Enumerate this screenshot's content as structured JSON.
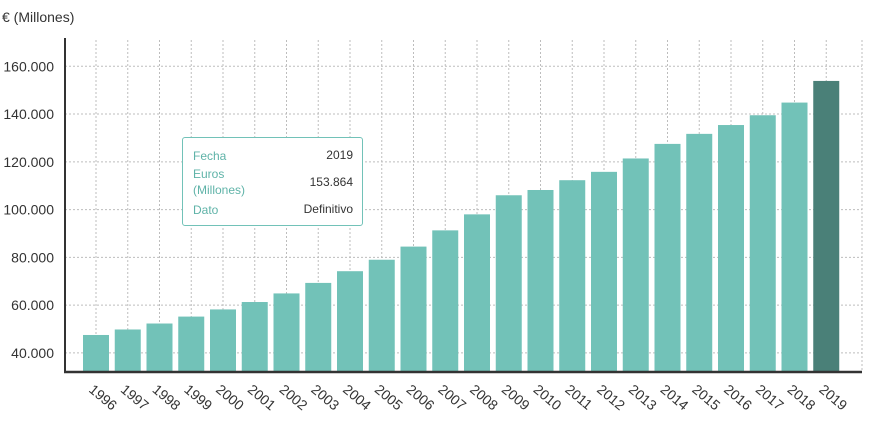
{
  "chart_data": {
    "type": "bar",
    "ylabel": "€ (Millones)",
    "categories": [
      "1996",
      "1997",
      "1998",
      "1999",
      "2000",
      "2001",
      "2002",
      "2003",
      "2004",
      "2005",
      "2006",
      "2007",
      "2008",
      "2009",
      "2010",
      "2011",
      "2012",
      "2013",
      "2014",
      "2015",
      "2016",
      "2017",
      "2018",
      "2019"
    ],
    "values": [
      47500,
      49800,
      52300,
      55200,
      58200,
      61300,
      64900,
      69300,
      74200,
      79000,
      84500,
      91300,
      98000,
      106000,
      108200,
      112300,
      115800,
      121400,
      127500,
      131700,
      135400,
      139500,
      144800,
      153864
    ],
    "ylim": [
      32000,
      171000
    ],
    "yticks": [
      40000,
      60000,
      80000,
      100000,
      120000,
      140000,
      160000
    ],
    "ytick_labels": [
      "40.000",
      "60.000",
      "80.000",
      "100.000",
      "120.000",
      "140.000",
      "160.000"
    ],
    "grid": true,
    "colors": {
      "bar": "#72c2b8",
      "highlight": "#4a8078"
    },
    "highlight_index": 23
  },
  "tooltip": {
    "fecha_label": "Fecha",
    "fecha_value": "2019",
    "euros_label_1": "Euros",
    "euros_label_2": "(Millones)",
    "euros_value": "153.864",
    "dato_label": "Dato",
    "dato_value": "Definitivo"
  }
}
